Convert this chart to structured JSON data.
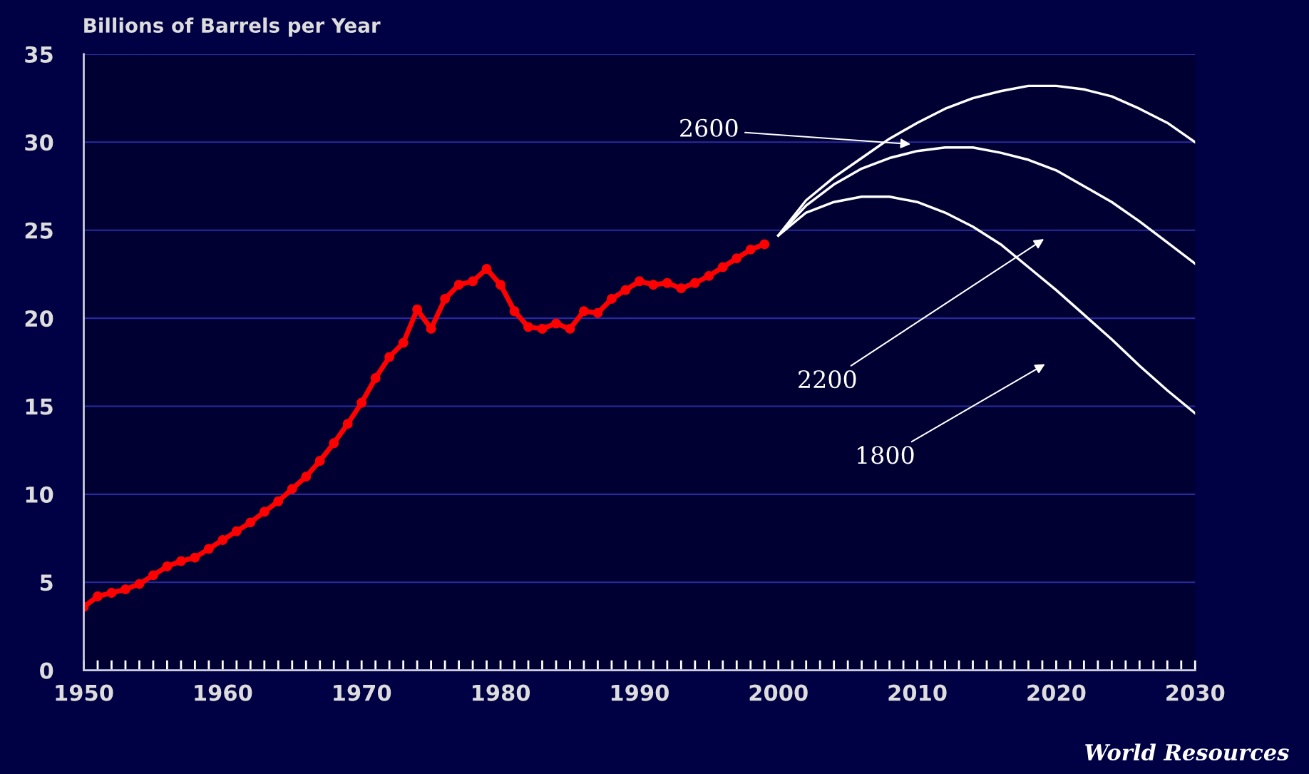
{
  "chart_data": {
    "type": "line",
    "ylabel": "Billions of Barrels per Year",
    "xlim": [
      1950,
      2030
    ],
    "xticks": [
      1950,
      1960,
      1970,
      1980,
      1990,
      2000,
      2010,
      2020,
      2030
    ],
    "ylim": [
      0,
      35
    ],
    "yticks": [
      0,
      5,
      10,
      15,
      20,
      25,
      30,
      35
    ],
    "grid": "y",
    "legend": false,
    "series": [
      {
        "color": "#ff0000",
        "marker": "circle",
        "x": [
          1950,
          1951,
          1952,
          1953,
          1954,
          1955,
          1956,
          1957,
          1958,
          1959,
          1960,
          1961,
          1962,
          1963,
          1964,
          1965,
          1966,
          1967,
          1968,
          1969,
          1970,
          1971,
          1972,
          1973,
          1974,
          1975,
          1976,
          1977,
          1978,
          1979,
          1980,
          1981,
          1982,
          1983,
          1984,
          1985,
          1986,
          1987,
          1988,
          1989,
          1990,
          1991,
          1992,
          1993,
          1994,
          1995,
          1996,
          1997,
          1998,
          1999
        ],
        "values": [
          3.6,
          4.2,
          4.4,
          4.6,
          4.9,
          5.4,
          5.9,
          6.2,
          6.4,
          6.9,
          7.4,
          7.9,
          8.4,
          9.0,
          9.6,
          10.3,
          11.0,
          11.9,
          12.9,
          14.0,
          15.2,
          16.6,
          17.8,
          18.6,
          20.5,
          19.4,
          21.1,
          21.9,
          22.1,
          22.8,
          21.9,
          20.4,
          19.5,
          19.4,
          19.7,
          19.4,
          20.4,
          20.3,
          21.1,
          21.6,
          22.1,
          21.9,
          22.0,
          21.7,
          22.0,
          22.4,
          22.9,
          23.4,
          23.9,
          24.2
        ]
      },
      {
        "color": "#ffffff",
        "x": [
          2000,
          2002,
          2004,
          2006,
          2008,
          2010,
          2012,
          2014,
          2016,
          2018,
          2020,
          2022,
          2024,
          2026,
          2028,
          2030
        ],
        "values": [
          24.7,
          26.7,
          28.0,
          29.1,
          30.2,
          31.1,
          31.9,
          32.5,
          32.9,
          33.2,
          33.2,
          33.0,
          32.6,
          31.9,
          31.1,
          30.0
        ]
      },
      {
        "color": "#ffffff",
        "x": [
          2000,
          2002,
          2004,
          2006,
          2008,
          2010,
          2012,
          2014,
          2016,
          2018,
          2020,
          2022,
          2024,
          2026,
          2028,
          2030
        ],
        "values": [
          24.7,
          26.4,
          27.6,
          28.5,
          29.1,
          29.5,
          29.7,
          29.7,
          29.4,
          29.0,
          28.4,
          27.5,
          26.6,
          25.5,
          24.3,
          23.1
        ]
      },
      {
        "color": "#ffffff",
        "x": [
          2000,
          2002,
          2004,
          2006,
          2008,
          2010,
          2012,
          2014,
          2016,
          2018,
          2020,
          2022,
          2024,
          2026,
          2028,
          2030
        ],
        "values": [
          24.7,
          26.0,
          26.6,
          26.9,
          26.9,
          26.6,
          26.0,
          25.2,
          24.2,
          22.9,
          21.6,
          20.2,
          18.8,
          17.3,
          15.9,
          14.6
        ]
      }
    ],
    "annotations": [
      "2600",
      "2200",
      "1800",
      "World Resources"
    ]
  }
}
